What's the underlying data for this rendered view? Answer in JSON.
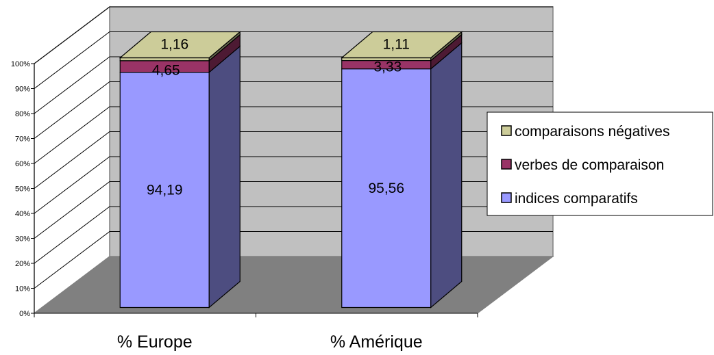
{
  "chart_data": {
    "type": "bar",
    "stacked": true,
    "percent_stacked": true,
    "three_d": true,
    "categories": [
      "% Europe",
      "% Amérique"
    ],
    "series": [
      {
        "name": "indices comparatifs",
        "values": [
          94.19,
          95.56
        ],
        "labels": [
          "94,19",
          "95,56"
        ],
        "color": "#9999ff"
      },
      {
        "name": "verbes de comparaison",
        "values": [
          4.65,
          3.33
        ],
        "labels": [
          "4,65",
          "3,33"
        ],
        "color": "#993366"
      },
      {
        "name": "comparaisons négatives",
        "values": [
          1.16,
          1.11
        ],
        "labels": [
          "1,16",
          "1,11"
        ],
        "color": "#cccc99"
      }
    ],
    "y_ticks": [
      "0%",
      "10%",
      "20%",
      "30%",
      "40%",
      "50%",
      "60%",
      "70%",
      "80%",
      "90%",
      "100%"
    ],
    "ylim": [
      0,
      100
    ],
    "grid": true,
    "legend_position": "right",
    "colors": {
      "wall": "#c0c0c0",
      "floor": "#808080"
    }
  }
}
